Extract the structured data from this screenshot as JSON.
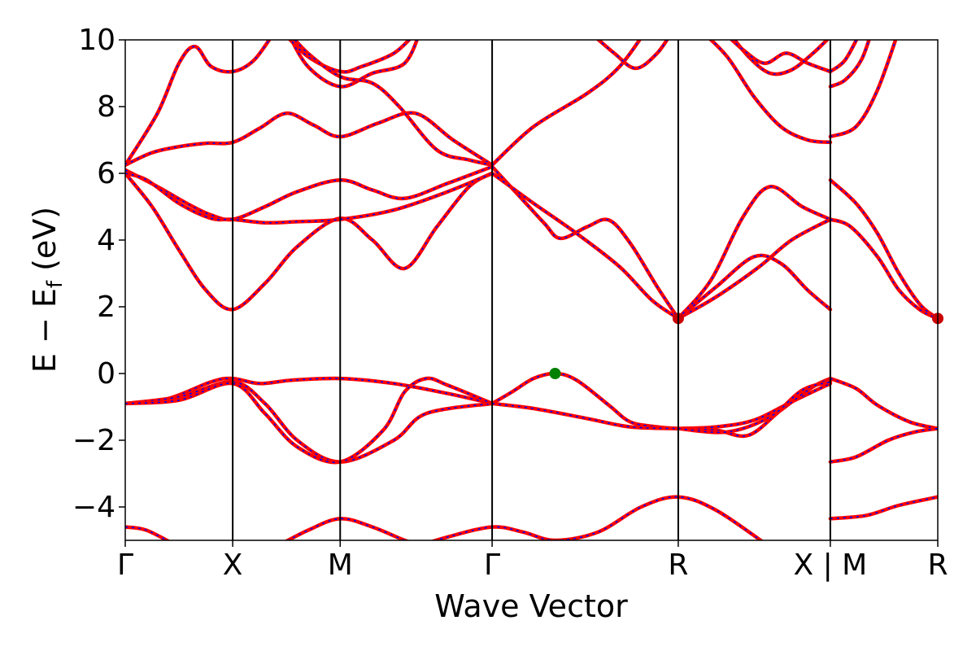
{
  "chart_data": {
    "type": "line",
    "title": "",
    "xlabel": "Wave Vector",
    "ylabel_main": "E − E",
    "ylabel_sub": "f",
    "ylabel_tail": " (eV)",
    "ylim": [
      -5,
      10
    ],
    "yticks": [
      {
        "value": 10,
        "label": "10"
      },
      {
        "value": 8,
        "label": "8"
      },
      {
        "value": 6,
        "label": "6"
      },
      {
        "value": 4,
        "label": "4"
      },
      {
        "value": 2,
        "label": "2"
      },
      {
        "value": 0,
        "label": "0"
      },
      {
        "value": -2,
        "label": "−2"
      },
      {
        "value": -4,
        "label": "−4"
      }
    ],
    "kpoints": [
      {
        "k": 0.0,
        "label": "Γ"
      },
      {
        "k": 1.0,
        "label": "X"
      },
      {
        "k": 2.0,
        "label": "M"
      },
      {
        "k": 3.414,
        "label": "Γ"
      },
      {
        "k": 5.146,
        "label": "R"
      },
      {
        "k": 6.561,
        "label": "X | M"
      },
      {
        "k": 7.561,
        "label": "R"
      }
    ],
    "grid": false,
    "legend": "none",
    "colors": {
      "band_outer": "#ff0000",
      "band_inner": "#0000ff",
      "vbm": "#008000",
      "cbm": "#cc0000",
      "axis": "#000000"
    },
    "markers": [
      {
        "name": "VBM",
        "k": 4.0,
        "e": 0.0,
        "color": "#008000"
      },
      {
        "name": "CBM",
        "k": 5.146,
        "e": 1.65,
        "color": "#cc0000"
      },
      {
        "name": "CBM-end",
        "k": 7.561,
        "e": 1.65,
        "color": "#cc0000"
      }
    ],
    "series": [
      {
        "values": [
          [
            0,
            6.25
          ],
          [
            0.25,
            6.62
          ],
          [
            0.5,
            6.8
          ],
          [
            0.75,
            6.9
          ],
          [
            1.0,
            6.93
          ],
          [
            1.25,
            7.35
          ],
          [
            1.5,
            7.8
          ],
          [
            1.75,
            7.45
          ],
          [
            2.0,
            7.1
          ],
          [
            2.35,
            7.5
          ],
          [
            2.7,
            7.8
          ],
          [
            3.05,
            7.0
          ],
          [
            3.414,
            6.25
          ]
        ]
      },
      {
        "values": [
          [
            0,
            6.1
          ],
          [
            0.3,
            5.6
          ],
          [
            0.6,
            5.05
          ],
          [
            0.8,
            4.75
          ],
          [
            1.0,
            4.62
          ],
          [
            1.3,
            5.0
          ],
          [
            1.6,
            5.45
          ],
          [
            2.0,
            5.8
          ],
          [
            2.3,
            5.5
          ],
          [
            2.6,
            5.25
          ],
          [
            3.0,
            5.7
          ],
          [
            3.414,
            6.2
          ]
        ]
      },
      {
        "values": [
          [
            0,
            6.0
          ],
          [
            0.25,
            5.0
          ],
          [
            0.5,
            3.7
          ],
          [
            0.75,
            2.5
          ],
          [
            1.0,
            1.92
          ],
          [
            1.3,
            2.7
          ],
          [
            1.6,
            3.8
          ],
          [
            2.0,
            4.65
          ],
          [
            2.3,
            4.0
          ],
          [
            2.6,
            3.15
          ],
          [
            2.9,
            4.4
          ],
          [
            3.2,
            5.6
          ],
          [
            3.414,
            6.0
          ]
        ]
      },
      {
        "values": [
          [
            0,
            6.0
          ],
          [
            0.2,
            5.8
          ],
          [
            0.5,
            5.1
          ],
          [
            0.8,
            4.65
          ],
          [
            1.0,
            4.62
          ],
          [
            1.3,
            4.52
          ],
          [
            1.6,
            4.55
          ],
          [
            2.0,
            4.62
          ],
          [
            2.5,
            4.9
          ],
          [
            3.0,
            5.45
          ],
          [
            3.414,
            6.0
          ]
        ]
      },
      {
        "values": [
          [
            0,
            6.25
          ],
          [
            0.3,
            7.8
          ],
          [
            0.5,
            9.3
          ],
          [
            0.65,
            9.8
          ],
          [
            0.8,
            9.2
          ],
          [
            1.0,
            9.05
          ],
          [
            1.2,
            9.4
          ],
          [
            1.4,
            10.3
          ]
        ]
      },
      {
        "values": [
          [
            1.45,
            10.3
          ],
          [
            1.7,
            9.5
          ],
          [
            2.0,
            9.05
          ],
          [
            2.2,
            9.2
          ],
          [
            2.5,
            9.6
          ],
          [
            2.7,
            10.2
          ]
        ]
      },
      {
        "values": [
          [
            1.5,
            10.3
          ],
          [
            1.7,
            9.2
          ],
          [
            2.0,
            8.6
          ],
          [
            2.3,
            9.0
          ],
          [
            2.6,
            9.3
          ],
          [
            2.75,
            10.3
          ]
        ]
      },
      {
        "values": [
          [
            1.5,
            10.3
          ],
          [
            1.7,
            9.6
          ],
          [
            2.0,
            8.9
          ],
          [
            2.3,
            8.7
          ],
          [
            2.55,
            8.0
          ],
          [
            2.9,
            6.7
          ],
          [
            3.2,
            6.4
          ],
          [
            3.414,
            6.25
          ]
        ]
      },
      {
        "values": [
          [
            3.414,
            6.25
          ],
          [
            3.8,
            7.4
          ],
          [
            4.3,
            8.4
          ],
          [
            4.6,
            9.2
          ],
          [
            4.85,
            10.3
          ]
        ]
      },
      {
        "values": [
          [
            4.3,
            10.3
          ],
          [
            4.55,
            9.6
          ],
          [
            4.75,
            9.15
          ],
          [
            4.95,
            9.6
          ],
          [
            5.1,
            10.3
          ]
        ]
      },
      {
        "values": [
          [
            3.414,
            6.2
          ],
          [
            3.7,
            5.2
          ],
          [
            3.9,
            4.5
          ],
          [
            4.05,
            4.05
          ],
          [
            4.3,
            4.4
          ],
          [
            4.5,
            4.6
          ],
          [
            4.7,
            3.9
          ],
          [
            4.95,
            2.6
          ],
          [
            5.146,
            1.65
          ]
        ]
      },
      {
        "values": [
          [
            3.414,
            6.0
          ],
          [
            3.8,
            5.1
          ],
          [
            4.2,
            4.2
          ],
          [
            4.6,
            3.2
          ],
          [
            4.9,
            2.2
          ],
          [
            5.146,
            1.65
          ]
        ]
      },
      {
        "values": [
          [
            5.146,
            1.65
          ],
          [
            5.5,
            2.3
          ],
          [
            5.9,
            3.2
          ],
          [
            6.2,
            4.0
          ],
          [
            6.561,
            4.62
          ]
        ]
      },
      {
        "values": [
          [
            5.146,
            1.65
          ],
          [
            5.5,
            2.6
          ],
          [
            5.85,
            3.5
          ],
          [
            6.1,
            3.3
          ],
          [
            6.35,
            2.5
          ],
          [
            6.561,
            1.92
          ]
        ]
      },
      {
        "values": [
          [
            5.146,
            1.65
          ],
          [
            5.45,
            2.8
          ],
          [
            5.75,
            4.7
          ],
          [
            6.0,
            5.6
          ],
          [
            6.3,
            5.0
          ],
          [
            6.561,
            4.62
          ]
        ]
      },
      {
        "values": [
          [
            5.35,
            10.3
          ],
          [
            5.6,
            9.5
          ],
          [
            5.85,
            8.3
          ],
          [
            6.1,
            7.4
          ],
          [
            6.35,
            7.0
          ],
          [
            6.561,
            6.93
          ]
        ]
      },
      {
        "values": [
          [
            5.6,
            10.3
          ],
          [
            5.8,
            9.5
          ],
          [
            6.0,
            9.0
          ],
          [
            6.2,
            9.1
          ],
          [
            6.4,
            9.6
          ],
          [
            6.561,
            10.1
          ]
        ]
      },
      {
        "values": [
          [
            5.55,
            10.3
          ],
          [
            5.75,
            9.7
          ],
          [
            5.95,
            9.3
          ],
          [
            6.15,
            9.6
          ],
          [
            6.35,
            9.3
          ],
          [
            6.561,
            9.05
          ]
        ]
      },
      {
        "values": [
          [
            6.561,
            9.05
          ],
          [
            6.7,
            9.4
          ],
          [
            6.85,
            10.3
          ]
        ]
      },
      {
        "values": [
          [
            6.561,
            8.6
          ],
          [
            6.7,
            8.8
          ],
          [
            6.85,
            9.4
          ],
          [
            6.95,
            10.3
          ]
        ]
      },
      {
        "values": [
          [
            6.561,
            7.1
          ],
          [
            6.8,
            7.4
          ],
          [
            7.0,
            8.5
          ],
          [
            7.2,
            10.3
          ]
        ]
      },
      {
        "values": [
          [
            6.561,
            5.8
          ],
          [
            6.8,
            5.1
          ],
          [
            7.0,
            4.2
          ],
          [
            7.2,
            3.0
          ],
          [
            7.4,
            2.05
          ],
          [
            7.561,
            1.65
          ]
        ]
      },
      {
        "values": [
          [
            6.561,
            4.62
          ],
          [
            6.75,
            4.4
          ],
          [
            7.0,
            3.5
          ],
          [
            7.2,
            2.5
          ],
          [
            7.4,
            1.9
          ],
          [
            7.561,
            1.65
          ]
        ]
      },
      {
        "values": [
          [
            0,
            -0.9
          ],
          [
            0.4,
            -0.75
          ],
          [
            0.8,
            -0.25
          ],
          [
            1.0,
            -0.15
          ],
          [
            1.25,
            -0.3
          ],
          [
            1.55,
            -0.2
          ],
          [
            2.0,
            -0.15
          ],
          [
            2.5,
            -0.3
          ],
          [
            3.0,
            -0.6
          ],
          [
            3.414,
            -0.9
          ]
        ]
      },
      {
        "values": [
          [
            0,
            -0.9
          ],
          [
            0.5,
            -0.7
          ],
          [
            1.0,
            -0.25
          ],
          [
            1.3,
            -0.9
          ],
          [
            1.6,
            -2.0
          ],
          [
            2.0,
            -2.65
          ],
          [
            2.5,
            -2.0
          ],
          [
            2.8,
            -1.2
          ],
          [
            3.414,
            -0.9
          ]
        ]
      },
      {
        "values": [
          [
            0,
            -0.9
          ],
          [
            0.5,
            -0.8
          ],
          [
            1.0,
            -0.3
          ],
          [
            1.3,
            -1.2
          ],
          [
            1.6,
            -2.2
          ],
          [
            2.0,
            -2.65
          ],
          [
            2.4,
            -1.7
          ],
          [
            2.6,
            -0.55
          ],
          [
            2.8,
            -0.15
          ],
          [
            3.0,
            -0.35
          ],
          [
            3.414,
            -0.9
          ]
        ]
      },
      {
        "values": [
          [
            3.414,
            -0.9
          ],
          [
            3.6,
            -0.55
          ],
          [
            3.8,
            -0.15
          ],
          [
            4.0,
            0.0
          ],
          [
            4.2,
            -0.2
          ],
          [
            4.5,
            -0.95
          ],
          [
            4.7,
            -1.45
          ],
          [
            4.95,
            -1.6
          ],
          [
            5.146,
            -1.65
          ]
        ]
      },
      {
        "values": [
          [
            3.414,
            -0.9
          ],
          [
            3.8,
            -1.05
          ],
          [
            4.3,
            -1.35
          ],
          [
            4.7,
            -1.6
          ],
          [
            5.146,
            -1.65
          ]
        ]
      },
      {
        "values": [
          [
            5.146,
            -1.65
          ],
          [
            5.5,
            -1.6
          ],
          [
            5.85,
            -1.4
          ],
          [
            6.2,
            -0.85
          ],
          [
            6.561,
            -0.3
          ]
        ]
      },
      {
        "values": [
          [
            5.146,
            -1.65
          ],
          [
            5.5,
            -1.7
          ],
          [
            5.8,
            -1.85
          ],
          [
            6.1,
            -1.1
          ],
          [
            6.4,
            -0.4
          ],
          [
            6.561,
            -0.15
          ]
        ]
      },
      {
        "values": [
          [
            5.146,
            -1.65
          ],
          [
            5.6,
            -1.75
          ],
          [
            6.0,
            -1.3
          ],
          [
            6.3,
            -0.5
          ],
          [
            6.561,
            -0.25
          ]
        ]
      },
      {
        "values": [
          [
            6.561,
            -0.15
          ],
          [
            6.8,
            -0.45
          ],
          [
            7.0,
            -0.95
          ],
          [
            7.3,
            -1.45
          ],
          [
            7.561,
            -1.65
          ]
        ]
      },
      {
        "values": [
          [
            6.561,
            -2.65
          ],
          [
            6.8,
            -2.5
          ],
          [
            7.1,
            -2.0
          ],
          [
            7.35,
            -1.75
          ],
          [
            7.561,
            -1.65
          ]
        ]
      },
      {
        "values": [
          [
            0,
            -4.6
          ],
          [
            0.2,
            -4.7
          ],
          [
            0.5,
            -5.2
          ]
        ]
      },
      {
        "values": [
          [
            1.4,
            -5.2
          ],
          [
            1.7,
            -4.7
          ],
          [
            2.0,
            -4.35
          ],
          [
            2.3,
            -4.6
          ],
          [
            2.6,
            -5.0
          ],
          [
            2.8,
            -5.2
          ]
        ]
      },
      {
        "values": [
          [
            2.7,
            -5.2
          ],
          [
            3.0,
            -4.9
          ],
          [
            3.414,
            -4.6
          ],
          [
            3.7,
            -4.75
          ],
          [
            4.0,
            -5.0
          ],
          [
            4.4,
            -4.75
          ],
          [
            4.8,
            -4.0
          ],
          [
            5.146,
            -3.7
          ],
          [
            5.5,
            -4.1
          ],
          [
            6.0,
            -5.2
          ]
        ]
      },
      {
        "values": [
          [
            6.561,
            -4.35
          ],
          [
            6.9,
            -4.25
          ],
          [
            7.2,
            -3.95
          ],
          [
            7.561,
            -3.7
          ]
        ]
      }
    ]
  }
}
